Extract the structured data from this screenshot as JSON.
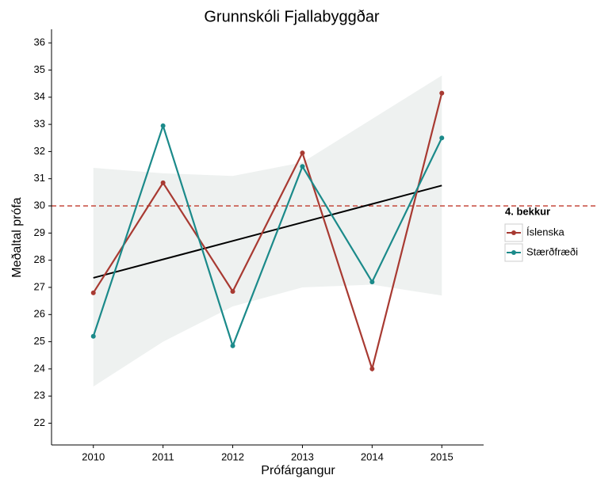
{
  "chart_data": {
    "type": "line",
    "title": "Grunnskóli Fjallabyggðar",
    "x_label": "Prófárgangur",
    "y_label": "Meðaltal prófa",
    "x": [
      2010,
      2011,
      2012,
      2013,
      2014,
      2015
    ],
    "series": [
      {
        "name": "Íslenska",
        "color": "#a83a32",
        "values": [
          26.8,
          30.85,
          26.85,
          31.95,
          24.0,
          34.15
        ]
      },
      {
        "name": "Stærðfræði",
        "color": "#1b8a8a",
        "values": [
          25.2,
          32.95,
          24.85,
          31.45,
          27.2,
          32.5
        ]
      }
    ],
    "trend": {
      "color": "#000000",
      "values": [
        27.35,
        28.03,
        28.71,
        29.39,
        30.07,
        30.75
      ]
    },
    "band": {
      "color": "#eef1f0",
      "upper": [
        31.4,
        31.2,
        31.1,
        31.6,
        33.2,
        34.8
      ],
      "lower": [
        23.35,
        25.0,
        26.3,
        27.0,
        27.1,
        26.7
      ]
    },
    "hline": {
      "value": 30,
      "color": "#c0392b"
    },
    "legend": {
      "title": "4. bekkur",
      "position": "right"
    },
    "xlim": [
      2009.4,
      2015.6
    ],
    "ylim": [
      21.2,
      36.5
    ],
    "xticks": [
      2010,
      2011,
      2012,
      2013,
      2014,
      2015
    ],
    "yticks": [
      22,
      23,
      24,
      25,
      26,
      27,
      28,
      29,
      30,
      31,
      32,
      33,
      34,
      35,
      36
    ]
  }
}
